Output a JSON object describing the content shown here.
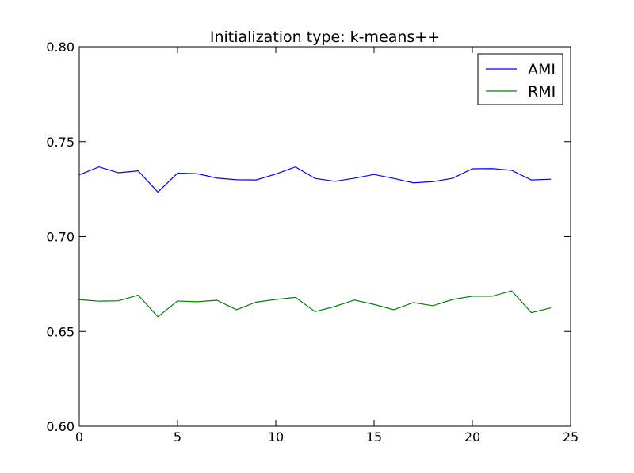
{
  "chart_data": {
    "type": "line",
    "title": "Initialization type: k-means++",
    "xlabel": "",
    "ylabel": "",
    "xlim": [
      0,
      25
    ],
    "ylim": [
      0.6,
      0.8
    ],
    "xticks": [
      0,
      5,
      10,
      15,
      20,
      25
    ],
    "xtick_labels": [
      "0",
      "5",
      "10",
      "15",
      "20",
      "25"
    ],
    "yticks": [
      0.6,
      0.65,
      0.7,
      0.75,
      0.8
    ],
    "ytick_labels": [
      "0.60",
      "0.65",
      "0.70",
      "0.75",
      "0.80"
    ],
    "grid": false,
    "legend_position": "top-right",
    "x": [
      0,
      1,
      2,
      3,
      4,
      5,
      6,
      7,
      8,
      9,
      10,
      11,
      12,
      13,
      14,
      15,
      16,
      17,
      18,
      19,
      20,
      21,
      22,
      23,
      24
    ],
    "series": [
      {
        "name": "AMI",
        "color": "#0000ff",
        "values": [
          0.7325,
          0.7367,
          0.7336,
          0.7346,
          0.7234,
          0.7334,
          0.7331,
          0.7308,
          0.7299,
          0.7298,
          0.7329,
          0.7367,
          0.7306,
          0.7291,
          0.7307,
          0.7327,
          0.7306,
          0.7283,
          0.7289,
          0.7307,
          0.7357,
          0.7358,
          0.7349,
          0.7298,
          0.7302
        ]
      },
      {
        "name": "RMI",
        "color": "#008000",
        "values": [
          0.6667,
          0.6659,
          0.6661,
          0.6691,
          0.6577,
          0.666,
          0.6656,
          0.6664,
          0.6614,
          0.6654,
          0.6668,
          0.6679,
          0.6604,
          0.6631,
          0.6665,
          0.6642,
          0.6614,
          0.6652,
          0.6635,
          0.6668,
          0.6685,
          0.6685,
          0.6714,
          0.6599,
          0.6624
        ]
      }
    ]
  }
}
